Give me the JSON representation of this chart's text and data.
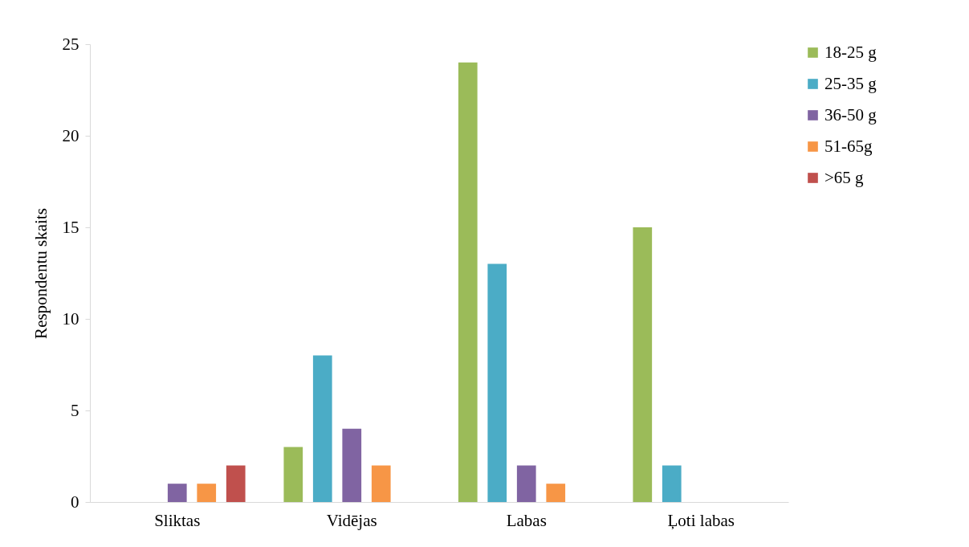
{
  "chart_data": {
    "type": "bar",
    "ylabel": "Respondentu skaits",
    "categories": [
      "Sliktas",
      "Vidējas",
      "Labas",
      "Ļoti labas"
    ],
    "series": [
      {
        "name": "18-25 g",
        "color": "#9bbb59",
        "values": [
          0,
          3,
          24,
          15
        ]
      },
      {
        "name": "25-35 g",
        "color": "#4bacc6",
        "values": [
          0,
          8,
          13,
          2
        ]
      },
      {
        "name": "36-50 g",
        "color": "#8064a2",
        "values": [
          1,
          4,
          2,
          0
        ]
      },
      {
        "name": "51-65g",
        "color": "#f79646",
        "values": [
          1,
          2,
          1,
          0
        ]
      },
      {
        "name": ">65 g",
        "color": "#c0504d",
        "values": [
          2,
          0,
          0,
          0
        ]
      }
    ],
    "ylim": [
      0,
      25
    ],
    "yticks": [
      0,
      5,
      10,
      15,
      20,
      25
    ],
    "grid": false,
    "legend": "right"
  }
}
